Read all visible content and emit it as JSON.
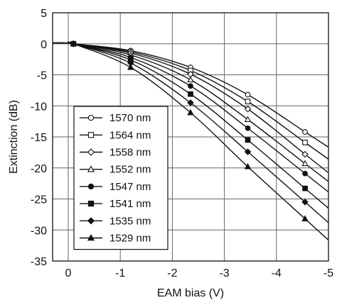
{
  "chart_data": {
    "type": "line",
    "xlabel": "EAM bias (V)",
    "ylabel": "Extinction (dB)",
    "xlim": [
      0.3,
      -5
    ],
    "ylim": [
      -35,
      5
    ],
    "x_ticks": [
      0,
      -1,
      -2,
      -3,
      -4,
      -5
    ],
    "y_ticks": [
      5,
      0,
      -5,
      -10,
      -15,
      -20,
      -25,
      -30,
      -35
    ],
    "grid": true,
    "legend_position": "lower-left",
    "marker_x": [
      -0.1,
      -1.2,
      -2.35,
      -3.45,
      -4.55
    ],
    "series": [
      {
        "name": "1570 nm",
        "marker": "circle-open",
        "x": [
          -0.1,
          -1.2,
          -2.35,
          -3.45,
          -4.55
        ],
        "y": [
          0,
          -1.1,
          -3.8,
          -8.2,
          -14.2
        ]
      },
      {
        "name": "1564 nm",
        "marker": "square-open",
        "x": [
          -0.1,
          -1.2,
          -2.35,
          -3.45,
          -4.55
        ],
        "y": [
          0,
          -1.3,
          -4.3,
          -9.3,
          -15.9
        ]
      },
      {
        "name": "1558 nm",
        "marker": "diamond-open",
        "x": [
          -0.1,
          -1.2,
          -2.35,
          -3.45,
          -4.55
        ],
        "y": [
          0,
          -1.5,
          -4.9,
          -10.5,
          -17.8
        ]
      },
      {
        "name": "1552 nm",
        "marker": "triangle-open",
        "x": [
          -0.1,
          -1.2,
          -2.35,
          -3.45,
          -4.55
        ],
        "y": [
          0,
          -1.8,
          -5.8,
          -12.2,
          -19.3
        ]
      },
      {
        "name": "1547 nm",
        "marker": "circle-filled",
        "x": [
          -0.1,
          -1.2,
          -2.35,
          -3.45,
          -4.55
        ],
        "y": [
          0,
          -2.2,
          -6.8,
          -13.6,
          -20.9
        ]
      },
      {
        "name": "1541 nm",
        "marker": "square-filled",
        "x": [
          -0.1,
          -1.2,
          -2.35,
          -3.45,
          -4.55
        ],
        "y": [
          0,
          -2.6,
          -8.1,
          -15.5,
          -23.3
        ]
      },
      {
        "name": "1535 nm",
        "marker": "diamond-filled",
        "x": [
          -0.1,
          -1.2,
          -2.35,
          -3.45,
          -4.55
        ],
        "y": [
          0,
          -3.1,
          -9.5,
          -17.4,
          -25.5
        ]
      },
      {
        "name": "1529 nm",
        "marker": "triangle-filled",
        "x": [
          -0.1,
          -1.2,
          -2.35,
          -3.45,
          -4.55
        ],
        "y": [
          0,
          -3.8,
          -11.1,
          -19.8,
          -28.2
        ]
      }
    ]
  }
}
